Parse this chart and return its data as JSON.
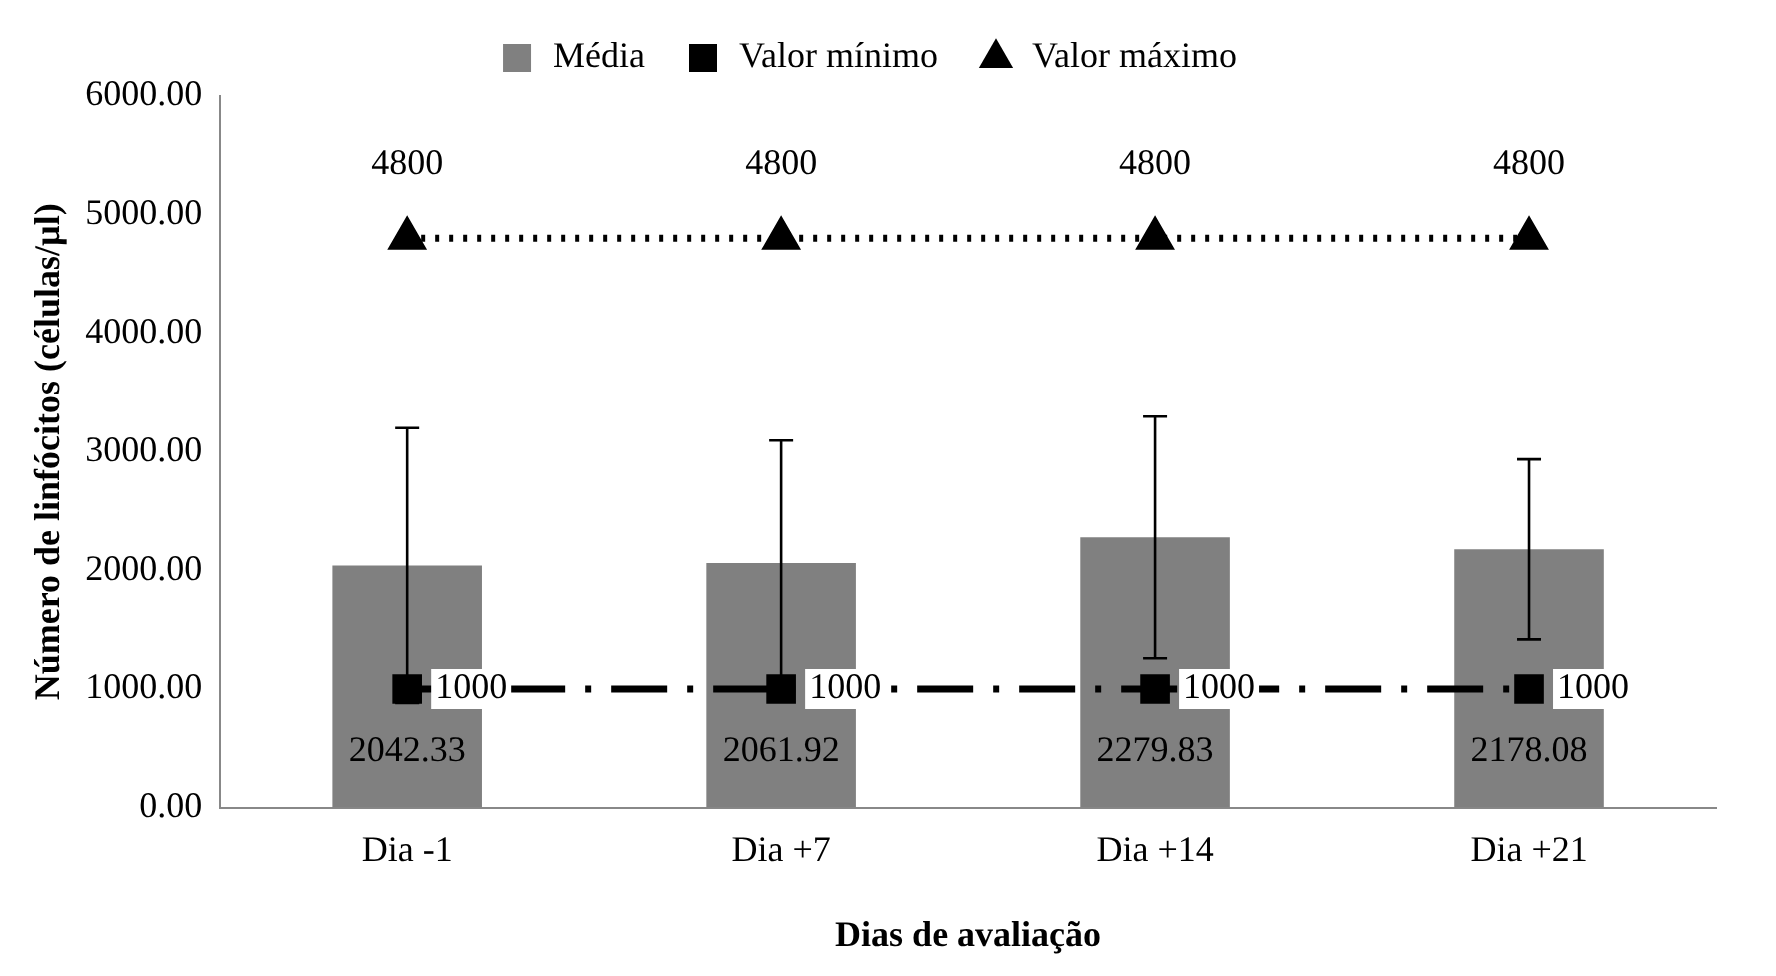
{
  "chart_data": {
    "type": "bar",
    "xlabel": "Dias de avaliação",
    "ylabel": "Número de linfócitos (células/µl)",
    "categories": [
      "Dia -1",
      "Dia +7",
      "Dia +14",
      "Dia +21"
    ],
    "series": [
      {
        "name": "Média",
        "color": "#808080",
        "values": [
          2042.33,
          2061.92,
          2279.83,
          2178.08
        ],
        "errors": [
          1160,
          1035,
          1020,
          760
        ]
      },
      {
        "name": "Valor mínimo",
        "type": "line",
        "color": "#000000",
        "marker": "square",
        "line_style": "dashed",
        "values": [
          1000,
          1000,
          1000,
          1000
        ]
      },
      {
        "name": "Valor máximo",
        "type": "line",
        "color": "#000000",
        "marker": "triangle",
        "line_style": "dotted",
        "values": [
          4800,
          4800,
          4800,
          4800
        ]
      }
    ],
    "ylim": [
      0,
      6000
    ],
    "yticks": [
      {
        "value": 0,
        "label": "0.00"
      },
      {
        "value": 1000,
        "label": "1000.00"
      },
      {
        "value": 2000,
        "label": "2000.00"
      },
      {
        "value": 3000,
        "label": "3000.00"
      },
      {
        "value": 4000,
        "label": "4000.00"
      },
      {
        "value": 5000,
        "label": "5000.00"
      },
      {
        "value": 6000,
        "label": "6000.00"
      }
    ],
    "grid": false,
    "legend": "top",
    "data_labels": true
  }
}
